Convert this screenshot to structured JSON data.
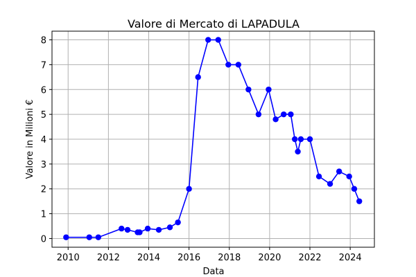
{
  "chart_data": {
    "type": "line",
    "title": "Valore di Mercato di LAPADULA",
    "xlabel": "Data",
    "ylabel": "Valore in Milioni €",
    "xlim": [
      2009.2,
      2025.2
    ],
    "ylim": [
      -0.35,
      8.35
    ],
    "xticks": [
      2010,
      2012,
      2014,
      2016,
      2018,
      2020,
      2022,
      2024
    ],
    "yticks": [
      0,
      1,
      2,
      3,
      4,
      5,
      6,
      7,
      8
    ],
    "grid": true,
    "line_color": "#0000ff",
    "marker": "circle",
    "series": [
      {
        "x": [
          2009.9,
          2011.05,
          2011.5,
          2012.65,
          2012.95,
          2013.45,
          2013.55,
          2013.95,
          2014.5,
          2015.05,
          2015.45,
          2016.0,
          2016.45,
          2016.95,
          2017.45,
          2017.95,
          2018.45,
          2018.95,
          2019.45,
          2019.95,
          2020.3,
          2020.7,
          2021.05,
          2021.25,
          2021.4,
          2021.55,
          2022.0,
          2022.45,
          2023.0,
          2023.45,
          2023.95,
          2024.2,
          2024.45
        ],
        "y": [
          0.05,
          0.05,
          0.05,
          0.4,
          0.35,
          0.25,
          0.25,
          0.4,
          0.35,
          0.45,
          0.65,
          2.0,
          6.5,
          8.0,
          8.0,
          7.0,
          7.0,
          6.0,
          5.0,
          6.0,
          4.8,
          5.0,
          5.0,
          4.0,
          3.5,
          4.0,
          4.0,
          2.5,
          2.2,
          2.7,
          2.5,
          2.0,
          1.5
        ]
      }
    ]
  }
}
